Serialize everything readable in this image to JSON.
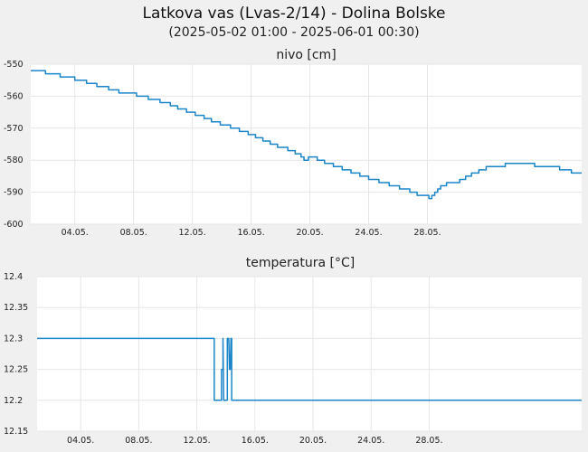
{
  "title": "Latkova vas (Lvas-2/14) - Dolina Bolske",
  "subtitle": "(2025-05-02 01:00 - 2025-06-01 00:30)",
  "colors": {
    "line": "#1a85c9",
    "plot_bg": "#ffffff",
    "page_bg": "#f0f0f0",
    "grid": "#e6e6e6"
  },
  "chart_data": [
    {
      "type": "line",
      "title": "nivo [cm]",
      "x_ticks": [
        "04.05.",
        "08.05.",
        "12.05.",
        "16.05.",
        "20.05.",
        "24.05.",
        "28.05."
      ],
      "y_ticks": [
        "-550",
        "-560",
        "-570",
        "-580",
        "-590",
        "-600"
      ],
      "ylim": [
        -600,
        -550
      ],
      "x_range": [
        "2025-05-02 01:00",
        "2025-06-01 00:30"
      ],
      "grid": true,
      "series": [
        {
          "points": [
            [
              1.0,
              -552
            ],
            [
              2.0,
              -553
            ],
            [
              3.0,
              -554
            ],
            [
              4.0,
              -555
            ],
            [
              4.8,
              -556
            ],
            [
              5.5,
              -557
            ],
            [
              6.3,
              -558
            ],
            [
              7.0,
              -559
            ],
            [
              8.2,
              -560
            ],
            [
              9.0,
              -561
            ],
            [
              9.8,
              -562
            ],
            [
              10.5,
              -563
            ],
            [
              11.0,
              -564
            ],
            [
              11.6,
              -565
            ],
            [
              12.2,
              -566
            ],
            [
              12.8,
              -567
            ],
            [
              13.3,
              -568
            ],
            [
              13.9,
              -569
            ],
            [
              14.6,
              -570
            ],
            [
              15.2,
              -571
            ],
            [
              15.8,
              -572
            ],
            [
              16.3,
              -573
            ],
            [
              16.8,
              -574
            ],
            [
              17.3,
              -575
            ],
            [
              17.8,
              -576
            ],
            [
              18.5,
              -577
            ],
            [
              19.0,
              -578
            ],
            [
              19.4,
              -579
            ],
            [
              19.6,
              -580
            ],
            [
              19.9,
              -579
            ],
            [
              20.5,
              -580
            ],
            [
              21.0,
              -581
            ],
            [
              21.6,
              -582
            ],
            [
              22.2,
              -583
            ],
            [
              22.8,
              -584
            ],
            [
              23.4,
              -585
            ],
            [
              24.0,
              -586
            ],
            [
              24.7,
              -587
            ],
            [
              25.4,
              -588
            ],
            [
              26.1,
              -589
            ],
            [
              26.8,
              -590
            ],
            [
              27.3,
              -591
            ],
            [
              27.9,
              -591
            ],
            [
              28.1,
              -592
            ],
            [
              28.3,
              -591
            ],
            [
              28.5,
              -590
            ],
            [
              28.7,
              -589
            ],
            [
              28.9,
              -588
            ],
            [
              29.3,
              -587
            ],
            [
              30.2,
              -586
            ],
            [
              30.6,
              -585
            ],
            [
              31.0,
              -584
            ],
            [
              31.5,
              -583
            ],
            [
              32.0,
              -582
            ],
            [
              33.0,
              -582
            ],
            [
              33.3,
              -581
            ],
            [
              35.0,
              -581
            ],
            [
              35.3,
              -582
            ],
            [
              36.5,
              -582
            ],
            [
              37.0,
              -583
            ],
            [
              37.8,
              -584
            ],
            [
              38.5,
              -584
            ]
          ]
        }
      ]
    },
    {
      "type": "line",
      "title": "temperatura [°C]",
      "x_ticks": [
        "04.05.",
        "08.05.",
        "12.05.",
        "16.05.",
        "20.05.",
        "24.05.",
        "28.05."
      ],
      "y_ticks": [
        "12.4",
        "12.35",
        "12.3",
        "12.25",
        "12.2",
        "12.15"
      ],
      "ylim": [
        12.15,
        12.4
      ],
      "x_range": [
        "2025-05-02 01:00",
        "2025-06-01 00:30"
      ],
      "grid": true,
      "series": [
        {
          "points": [
            [
              1.0,
              12.3
            ],
            [
              13.2,
              12.3
            ],
            [
              13.2,
              12.2
            ],
            [
              13.7,
              12.2
            ],
            [
              13.7,
              12.25
            ],
            [
              13.8,
              12.25
            ],
            [
              13.8,
              12.3
            ],
            [
              13.85,
              12.2
            ],
            [
              14.1,
              12.2
            ],
            [
              14.1,
              12.3
            ],
            [
              14.2,
              12.3
            ],
            [
              14.25,
              12.25
            ],
            [
              14.3,
              12.25
            ],
            [
              14.35,
              12.3
            ],
            [
              14.4,
              12.3
            ],
            [
              14.4,
              12.2
            ],
            [
              38.5,
              12.2
            ]
          ]
        }
      ]
    }
  ]
}
